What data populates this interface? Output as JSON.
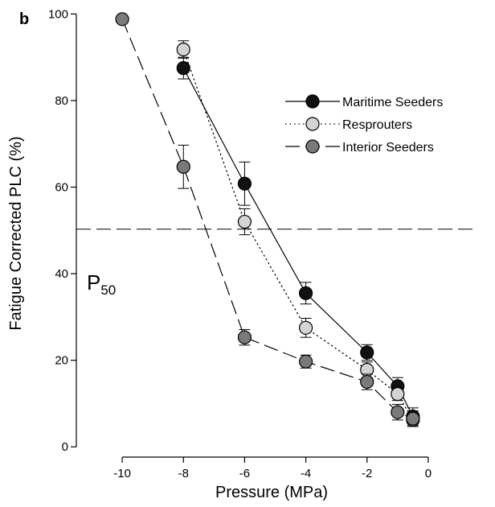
{
  "panel_label": "b",
  "annotation": {
    "main": "P",
    "subscript": "50"
  },
  "chart_data": {
    "type": "line",
    "xlabel": "Pressure (MPa)",
    "ylabel": "Fatigue Corrected PLC (%)",
    "xlim": [
      -11.5,
      1.5
    ],
    "ylim": [
      -2,
      101
    ],
    "xticks": [
      -10,
      -8,
      -6,
      -4,
      -2,
      0
    ],
    "yticks": [
      0,
      20,
      40,
      60,
      80,
      100
    ],
    "xtick_labels": [
      "-10",
      "-8",
      "-6",
      "-4",
      "-2",
      "0"
    ],
    "ytick_labels": [
      "0",
      "20",
      "40",
      "60",
      "80",
      "100"
    ],
    "reference_line": {
      "y": 50.3,
      "style": "dashed"
    },
    "legend_position": "top-right",
    "series": [
      {
        "name": "Maritime Seeders",
        "color": "#111111",
        "line_style": "solid",
        "x": [
          -8,
          -6,
          -4,
          -2,
          -1,
          -0.5
        ],
        "y": [
          87.5,
          60.8,
          35.5,
          21.8,
          14.0,
          7.0
        ],
        "err": [
          2.5,
          5.0,
          2.5,
          1.8,
          2.0,
          2.0
        ]
      },
      {
        "name": "Resprouters",
        "color": "#d4d4d4",
        "line_style": "dotted",
        "x": [
          -8,
          -6,
          -4,
          -2,
          -1,
          -0.5
        ],
        "y": [
          91.8,
          52.0,
          27.5,
          17.8,
          12.2,
          6.2
        ],
        "err": [
          2.0,
          3.0,
          2.2,
          1.8,
          1.5,
          1.5
        ]
      },
      {
        "name": "Interior Seeders",
        "color": "#7a7a7a",
        "line_style": "dashed",
        "x": [
          -10,
          -8,
          -6,
          -4,
          -2,
          -1,
          -0.5
        ],
        "y": [
          98.8,
          64.7,
          25.3,
          19.7,
          15.0,
          8.0,
          6.5
        ],
        "err": [
          0.6,
          5.0,
          1.8,
          1.5,
          1.8,
          1.8,
          1.8
        ]
      }
    ]
  }
}
